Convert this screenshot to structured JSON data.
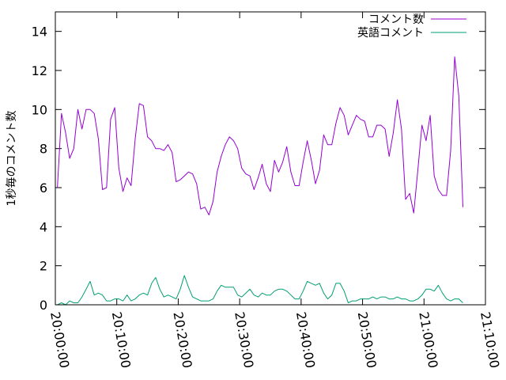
{
  "chart_data": {
    "type": "line",
    "title": "",
    "xlabel": "",
    "ylabel": "1秒毎のコメント数",
    "xlim": [
      "20:00:00",
      "21:10:00"
    ],
    "ylim": [
      0,
      15
    ],
    "x_ticks": [
      "20:00:00",
      "20:10:00",
      "20:20:00",
      "20:30:00",
      "20:40:00",
      "20:50:00",
      "21:00:00",
      "21:10:00"
    ],
    "y_ticks": [
      0,
      2,
      4,
      6,
      8,
      10,
      12,
      14
    ],
    "grid": false,
    "legend_position": "top-right",
    "series": [
      {
        "name": "コメント数",
        "color": "#9400d3",
        "points": [
          [
            "20:00:20",
            6.0
          ],
          [
            "20:01:00",
            9.8
          ],
          [
            "20:01:40",
            8.8
          ],
          [
            "20:02:20",
            7.5
          ],
          [
            "20:03:00",
            8.0
          ],
          [
            "20:03:40",
            10.0
          ],
          [
            "20:04:20",
            9.0
          ],
          [
            "20:05:00",
            10.0
          ],
          [
            "20:05:40",
            10.0
          ],
          [
            "20:06:20",
            9.8
          ],
          [
            "20:07:00",
            8.5
          ],
          [
            "20:07:40",
            5.9
          ],
          [
            "20:08:20",
            6.0
          ],
          [
            "20:09:00",
            9.5
          ],
          [
            "20:09:40",
            10.1
          ],
          [
            "20:10:20",
            7.0
          ],
          [
            "20:11:00",
            5.8
          ],
          [
            "20:11:40",
            6.5
          ],
          [
            "20:12:20",
            6.1
          ],
          [
            "20:13:00",
            8.5
          ],
          [
            "20:13:40",
            10.3
          ],
          [
            "20:14:20",
            10.2
          ],
          [
            "20:15:00",
            8.6
          ],
          [
            "20:15:40",
            8.4
          ],
          [
            "20:16:20",
            8.0
          ],
          [
            "20:17:00",
            8.0
          ],
          [
            "20:17:40",
            7.9
          ],
          [
            "20:18:20",
            8.2
          ],
          [
            "20:19:00",
            7.8
          ],
          [
            "20:19:40",
            6.3
          ],
          [
            "20:20:20",
            6.4
          ],
          [
            "20:21:00",
            6.6
          ],
          [
            "20:21:40",
            6.8
          ],
          [
            "20:22:20",
            6.7
          ],
          [
            "20:23:00",
            6.2
          ],
          [
            "20:23:40",
            4.9
          ],
          [
            "20:24:20",
            5.0
          ],
          [
            "20:25:00",
            4.6
          ],
          [
            "20:25:40",
            5.3
          ],
          [
            "20:26:20",
            6.8
          ],
          [
            "20:27:00",
            7.6
          ],
          [
            "20:27:40",
            8.2
          ],
          [
            "20:28:20",
            8.6
          ],
          [
            "20:29:00",
            8.4
          ],
          [
            "20:29:40",
            8.0
          ],
          [
            "20:30:20",
            7.0
          ],
          [
            "20:31:00",
            6.7
          ],
          [
            "20:31:40",
            6.6
          ],
          [
            "20:32:20",
            5.9
          ],
          [
            "20:33:00",
            6.5
          ],
          [
            "20:33:40",
            7.2
          ],
          [
            "20:34:20",
            6.2
          ],
          [
            "20:35:00",
            5.8
          ],
          [
            "20:35:40",
            7.4
          ],
          [
            "20:36:20",
            6.8
          ],
          [
            "20:37:00",
            7.3
          ],
          [
            "20:37:40",
            8.1
          ],
          [
            "20:38:20",
            6.8
          ],
          [
            "20:39:00",
            6.1
          ],
          [
            "20:39:40",
            6.1
          ],
          [
            "20:40:20",
            7.3
          ],
          [
            "20:41:00",
            8.4
          ],
          [
            "20:41:40",
            7.4
          ],
          [
            "20:42:20",
            6.2
          ],
          [
            "20:43:00",
            6.9
          ],
          [
            "20:43:40",
            8.7
          ],
          [
            "20:44:20",
            8.2
          ],
          [
            "20:45:00",
            8.2
          ],
          [
            "20:45:40",
            9.3
          ],
          [
            "20:46:20",
            10.1
          ],
          [
            "20:47:00",
            9.7
          ],
          [
            "20:47:40",
            8.7
          ],
          [
            "20:48:20",
            9.2
          ],
          [
            "20:49:00",
            9.7
          ],
          [
            "20:49:40",
            9.5
          ],
          [
            "20:50:20",
            9.4
          ],
          [
            "20:51:00",
            8.6
          ],
          [
            "20:51:40",
            8.6
          ],
          [
            "20:52:20",
            9.2
          ],
          [
            "20:53:00",
            9.2
          ],
          [
            "20:53:40",
            9.0
          ],
          [
            "20:54:20",
            7.6
          ],
          [
            "20:55:00",
            8.8
          ],
          [
            "20:55:40",
            10.5
          ],
          [
            "20:56:20",
            9.0
          ],
          [
            "20:57:00",
            5.4
          ],
          [
            "20:57:40",
            5.7
          ],
          [
            "20:58:20",
            4.7
          ],
          [
            "20:59:00",
            6.9
          ],
          [
            "20:59:40",
            9.2
          ],
          [
            "21:00:20",
            8.4
          ],
          [
            "21:01:00",
            9.7
          ],
          [
            "21:01:40",
            6.6
          ],
          [
            "21:02:20",
            5.9
          ],
          [
            "21:03:00",
            5.6
          ],
          [
            "21:03:40",
            5.6
          ],
          [
            "21:04:20",
            7.9
          ],
          [
            "21:05:00",
            12.7
          ],
          [
            "21:05:40",
            10.7
          ],
          [
            "21:06:20",
            5.0
          ]
        ]
      },
      {
        "name": "英語コメント",
        "color": "#009e73",
        "points": [
          [
            "20:00:20",
            0.0
          ],
          [
            "20:01:00",
            0.1
          ],
          [
            "20:01:40",
            0.0
          ],
          [
            "20:02:20",
            0.2
          ],
          [
            "20:03:00",
            0.1
          ],
          [
            "20:03:40",
            0.1
          ],
          [
            "20:04:20",
            0.4
          ],
          [
            "20:05:00",
            0.8
          ],
          [
            "20:05:40",
            1.2
          ],
          [
            "20:06:20",
            0.5
          ],
          [
            "20:07:00",
            0.6
          ],
          [
            "20:07:40",
            0.5
          ],
          [
            "20:08:20",
            0.2
          ],
          [
            "20:09:00",
            0.2
          ],
          [
            "20:09:40",
            0.3
          ],
          [
            "20:10:20",
            0.3
          ],
          [
            "20:11:00",
            0.2
          ],
          [
            "20:11:40",
            0.5
          ],
          [
            "20:12:20",
            0.2
          ],
          [
            "20:13:00",
            0.3
          ],
          [
            "20:13:40",
            0.5
          ],
          [
            "20:14:20",
            0.6
          ],
          [
            "20:15:00",
            0.5
          ],
          [
            "20:15:40",
            1.1
          ],
          [
            "20:16:20",
            1.4
          ],
          [
            "20:17:00",
            0.8
          ],
          [
            "20:17:40",
            0.4
          ],
          [
            "20:18:20",
            0.5
          ],
          [
            "20:19:00",
            0.4
          ],
          [
            "20:19:40",
            0.3
          ],
          [
            "20:20:20",
            0.8
          ],
          [
            "20:21:00",
            1.5
          ],
          [
            "20:21:40",
            0.9
          ],
          [
            "20:22:20",
            0.4
          ],
          [
            "20:23:00",
            0.3
          ],
          [
            "20:23:40",
            0.2
          ],
          [
            "20:24:20",
            0.2
          ],
          [
            "20:25:00",
            0.2
          ],
          [
            "20:25:40",
            0.3
          ],
          [
            "20:26:20",
            0.7
          ],
          [
            "20:27:00",
            1.0
          ],
          [
            "20:27:40",
            0.9
          ],
          [
            "20:28:20",
            0.9
          ],
          [
            "20:29:00",
            0.9
          ],
          [
            "20:29:40",
            0.5
          ],
          [
            "20:30:20",
            0.4
          ],
          [
            "20:31:00",
            0.6
          ],
          [
            "20:31:40",
            0.8
          ],
          [
            "20:32:20",
            0.5
          ],
          [
            "20:33:00",
            0.4
          ],
          [
            "20:33:40",
            0.6
          ],
          [
            "20:34:20",
            0.5
          ],
          [
            "20:35:00",
            0.5
          ],
          [
            "20:35:40",
            0.7
          ],
          [
            "20:36:20",
            0.8
          ],
          [
            "20:37:00",
            0.8
          ],
          [
            "20:37:40",
            0.7
          ],
          [
            "20:38:20",
            0.5
          ],
          [
            "20:39:00",
            0.3
          ],
          [
            "20:39:40",
            0.3
          ],
          [
            "20:40:20",
            0.7
          ],
          [
            "20:41:00",
            1.2
          ],
          [
            "20:41:40",
            1.1
          ],
          [
            "20:42:20",
            1.0
          ],
          [
            "20:43:00",
            1.1
          ],
          [
            "20:43:40",
            0.6
          ],
          [
            "20:44:20",
            0.3
          ],
          [
            "20:45:00",
            0.5
          ],
          [
            "20:45:40",
            1.1
          ],
          [
            "20:46:20",
            1.1
          ],
          [
            "20:47:00",
            0.7
          ],
          [
            "20:47:40",
            0.1
          ],
          [
            "20:48:20",
            0.2
          ],
          [
            "20:49:00",
            0.2
          ],
          [
            "20:49:40",
            0.3
          ],
          [
            "20:50:20",
            0.3
          ],
          [
            "20:51:00",
            0.3
          ],
          [
            "20:51:40",
            0.4
          ],
          [
            "20:52:20",
            0.3
          ],
          [
            "20:53:00",
            0.4
          ],
          [
            "20:53:40",
            0.4
          ],
          [
            "20:54:20",
            0.3
          ],
          [
            "20:55:00",
            0.3
          ],
          [
            "20:55:40",
            0.4
          ],
          [
            "20:56:20",
            0.3
          ],
          [
            "20:57:00",
            0.3
          ],
          [
            "20:57:40",
            0.2
          ],
          [
            "20:58:20",
            0.2
          ],
          [
            "20:59:00",
            0.3
          ],
          [
            "20:59:40",
            0.5
          ],
          [
            "21:00:20",
            0.8
          ],
          [
            "21:01:00",
            0.8
          ],
          [
            "21:01:40",
            0.7
          ],
          [
            "21:02:20",
            1.0
          ],
          [
            "21:03:00",
            0.6
          ],
          [
            "21:03:40",
            0.3
          ],
          [
            "21:04:20",
            0.2
          ],
          [
            "21:05:00",
            0.3
          ],
          [
            "21:05:40",
            0.3
          ],
          [
            "21:06:20",
            0.1
          ]
        ]
      }
    ]
  }
}
